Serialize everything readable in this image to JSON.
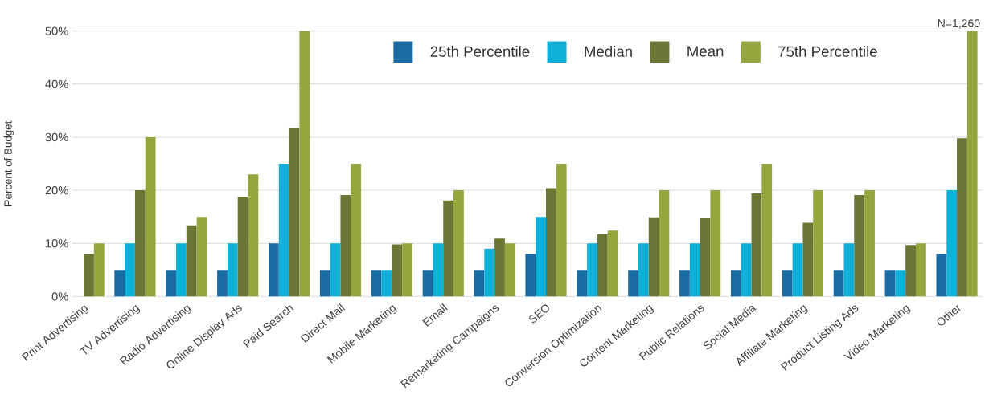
{
  "chart_data": {
    "type": "bar",
    "ylabel": "Percent of Budget",
    "annotations": [
      "N=1,260"
    ],
    "categories": [
      "Print Advertising",
      "TV Advertising",
      "Radio Advertising",
      "Online Display Ads",
      "Paid Search",
      "Direct Mail",
      "Mobile Marketing",
      "Email",
      "Remarketing Campaigns",
      "SEO",
      "Conversion Optimization",
      "Content Marketing",
      "Public Relations",
      "Social Media",
      "Affiliate Marketing",
      "Product Listing Ads",
      "Video Marketing",
      "Other"
    ],
    "series": [
      {
        "name": "25th Percentile",
        "color": "#1a6aa3",
        "values": [
          null,
          5,
          5,
          5,
          10,
          5,
          5,
          5,
          5,
          8,
          5,
          5,
          5,
          5,
          5,
          5,
          5,
          8
        ]
      },
      {
        "name": "Median",
        "color": "#0fb0d8",
        "values": [
          null,
          10,
          10,
          10,
          25,
          10,
          5,
          10,
          9,
          15,
          10,
          10,
          10,
          10,
          10,
          10,
          5,
          20
        ]
      },
      {
        "name": "Mean",
        "color": "#6a7536",
        "values": [
          8,
          20,
          13.4,
          18.8,
          31.7,
          19.1,
          9.8,
          18.1,
          10.9,
          20.4,
          11.7,
          14.9,
          14.7,
          19.4,
          13.9,
          19.1,
          9.7,
          29.8
        ]
      },
      {
        "name": "75th Percentile",
        "color": "#97a53f",
        "values": [
          10,
          30,
          15,
          23,
          50,
          25,
          10,
          20,
          10,
          25,
          12.4,
          20,
          20,
          25,
          20,
          20,
          10,
          50
        ]
      }
    ],
    "ylim": [
      0,
      50
    ],
    "yticks": [
      {
        "value": 0,
        "label": "0%"
      },
      {
        "value": 10,
        "label": "10%"
      },
      {
        "value": 20,
        "label": "20%"
      },
      {
        "value": 30,
        "label": "30%"
      },
      {
        "value": 40,
        "label": "40%"
      },
      {
        "value": 50,
        "label": "50%"
      }
    ],
    "grid": "y",
    "legend": "top"
  }
}
